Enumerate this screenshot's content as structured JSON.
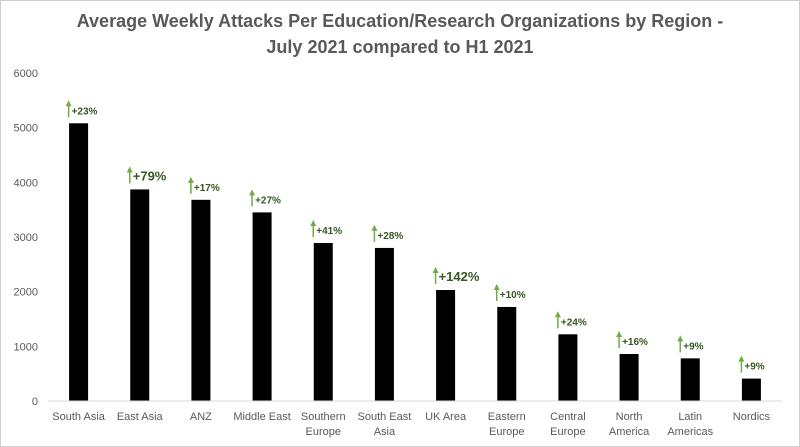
{
  "chart_data": {
    "type": "bar",
    "title": "Average Weekly Attacks Per Education/Research Organizations by Region -\nJuly 2021 compared to H1 2021",
    "categories": [
      [
        "South Asia"
      ],
      [
        "East Asia"
      ],
      [
        "ANZ"
      ],
      [
        "Middle East"
      ],
      [
        "Southern",
        "Europe"
      ],
      [
        "South East",
        "Asia"
      ],
      [
        "UK Area"
      ],
      [
        "Eastern",
        "Europe"
      ],
      [
        "Central",
        "Europe"
      ],
      [
        "North",
        "America"
      ],
      [
        "Latin",
        "Americas"
      ],
      [
        "Nordics"
      ]
    ],
    "values": [
      5080,
      3870,
      3680,
      3450,
      2890,
      2800,
      2030,
      1720,
      1220,
      860,
      780,
      410
    ],
    "annotations": [
      "+23%",
      "+79%",
      "+17%",
      "+27%",
      "+41%",
      "+28%",
      "+142%",
      "+10%",
      "+24%",
      "+16%",
      "+9%",
      "+9%"
    ],
    "annotation_emphasis": [
      false,
      true,
      false,
      false,
      false,
      false,
      true,
      false,
      false,
      false,
      false,
      false
    ],
    "ylim": [
      0,
      6000
    ],
    "yticks": [
      0,
      1000,
      2000,
      3000,
      4000,
      5000,
      6000
    ],
    "grid": false,
    "legend": "none",
    "colors": {
      "bar": "#000000",
      "arrow": "#70AD47",
      "annotation_text": "#375623",
      "axis_text": "#595959",
      "axis_line": "#d9d9d9"
    }
  }
}
